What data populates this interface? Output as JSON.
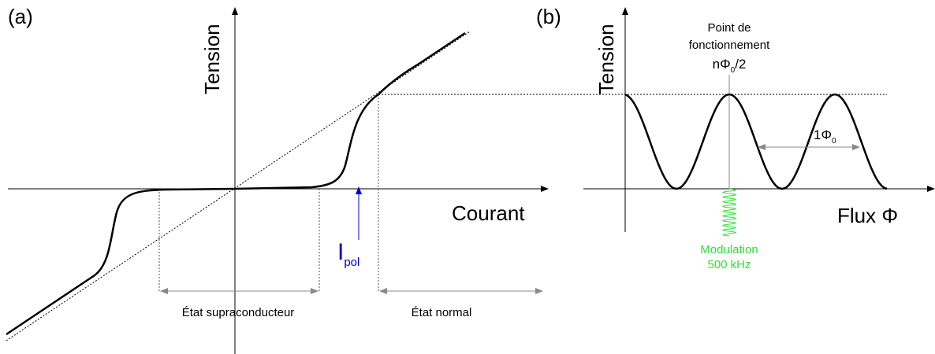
{
  "panel_a": {
    "label": "(a)",
    "y_axis": "Tension",
    "x_axis": "Courant",
    "bias": {
      "symbol": "I",
      "subscript": "pol"
    },
    "regions": [
      "État supraconducteur",
      "État normal"
    ]
  },
  "panel_b": {
    "label": "(b)",
    "y_axis": "Tension",
    "x_axis": "Flux Φ",
    "operating_point": {
      "lines": [
        "Point de",
        "fonctionnement"
      ],
      "value": {
        "main": "nΦ",
        "subscript": "0",
        "suffix": "/2"
      }
    },
    "period": {
      "main": "1Φ",
      "subscript": "0"
    },
    "modulation": [
      "Modulation",
      "500 kHz"
    ]
  }
}
